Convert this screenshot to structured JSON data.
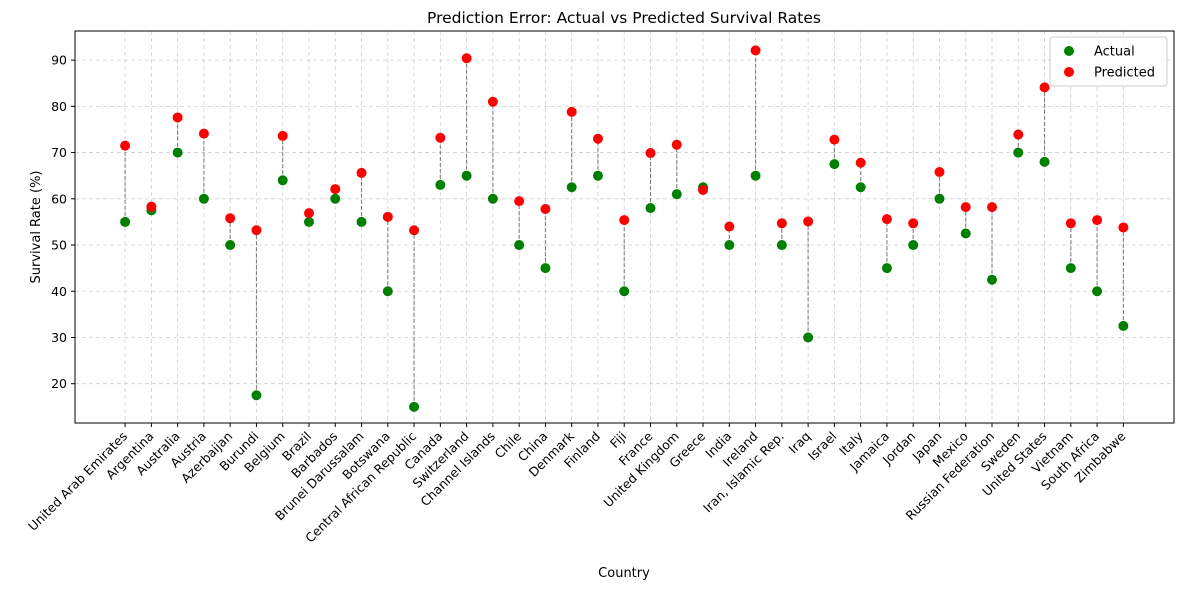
{
  "chart_data": {
    "type": "scatter",
    "title": "Prediction Error: Actual vs Predicted Survival Rates",
    "xlabel": "Country",
    "ylabel": "Survival Rate (%)",
    "ylim": [
      11.5,
      96.3
    ],
    "yticks": [
      20,
      30,
      40,
      50,
      60,
      70,
      80,
      90
    ],
    "grid": true,
    "legend_position": "top-right",
    "categories": [
      "United Arab Emirates",
      "Argentina",
      "Australia",
      "Austria",
      "Azerbaijan",
      "Burundi",
      "Belgium",
      "Brazil",
      "Barbados",
      "Brunei Darussalam",
      "Botswana",
      "Central African Republic",
      "Canada",
      "Switzerland",
      "Channel Islands",
      "Chile",
      "China",
      "Denmark",
      "Finland",
      "Fiji",
      "France",
      "United Kingdom",
      "Greece",
      "India",
      "Ireland",
      "Iran, Islamic Rep.",
      "Iraq",
      "Israel",
      "Italy",
      "Jamaica",
      "Jordan",
      "Japan",
      "Mexico",
      "Russian Federation",
      "Sweden",
      "United States",
      "Vietnam",
      "South Africa",
      "Zimbabwe"
    ],
    "series": [
      {
        "name": "Actual",
        "color": "#008000",
        "values": [
          55,
          57.5,
          70,
          60,
          50,
          17.5,
          64,
          55,
          60,
          55,
          40,
          15,
          63,
          65,
          60,
          50,
          45,
          62.5,
          65,
          40,
          58,
          61,
          62.5,
          50,
          65,
          50,
          30,
          67.5,
          62.5,
          45,
          50,
          60,
          52.5,
          42.5,
          70,
          68,
          45,
          40,
          32.5
        ]
      },
      {
        "name": "Predicted",
        "color": "#ff0000",
        "values": [
          71.5,
          58.3,
          77.6,
          74.1,
          55.8,
          53.2,
          73.6,
          56.9,
          62.1,
          65.6,
          56.1,
          53.2,
          73.2,
          90.4,
          81.0,
          59.5,
          57.8,
          78.8,
          73.0,
          55.4,
          69.9,
          71.7,
          61.9,
          54.0,
          92.1,
          54.7,
          55.1,
          72.8,
          67.8,
          55.6,
          54.7,
          65.8,
          58.2,
          58.2,
          73.9,
          84.1,
          54.7,
          55.4,
          53.8
        ]
      }
    ]
  }
}
